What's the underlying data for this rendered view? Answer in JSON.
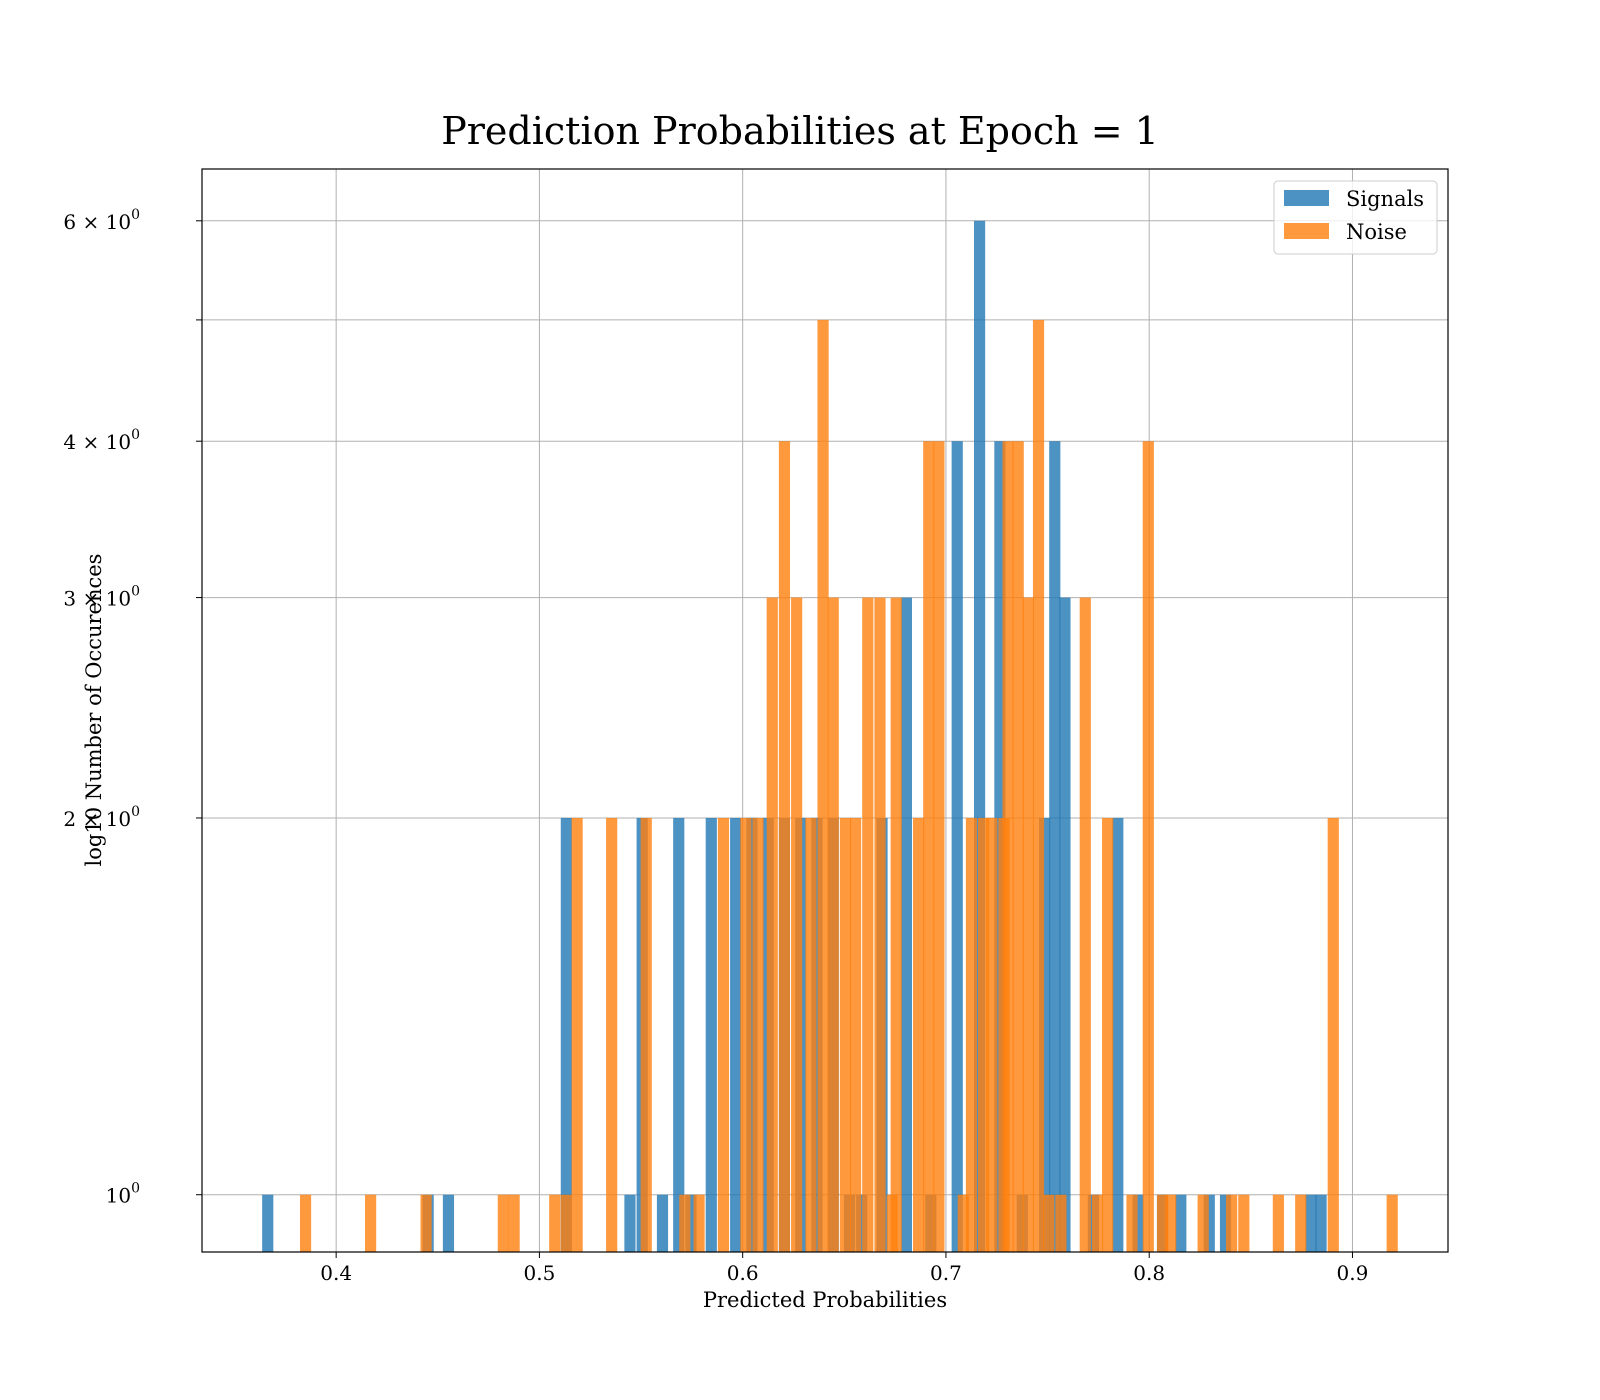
{
  "chart_data": {
    "type": "bar",
    "title": "Prediction Probabilities at Epoch = 1",
    "xlabel": "Predicted Probabilities",
    "ylabel": "log10 Number of Occurences",
    "xlim": [
      0.334,
      0.947
    ],
    "ylim": [
      0.9,
      6.6
    ],
    "yscale": "log",
    "grid": true,
    "legend_position": "top-right",
    "bin_width": 0.0055,
    "x_ticks": [
      {
        "value": 0.4,
        "label": "0.4"
      },
      {
        "value": 0.5,
        "label": "0.5"
      },
      {
        "value": 0.6,
        "label": "0.6"
      },
      {
        "value": 0.7,
        "label": "0.7"
      },
      {
        "value": 0.8,
        "label": "0.8"
      },
      {
        "value": 0.9,
        "label": "0.9"
      }
    ],
    "y_ticks": [
      {
        "value": 1,
        "base": "10",
        "exp": "0"
      },
      {
        "value": 2,
        "base": "2 × 10",
        "exp": "0"
      },
      {
        "value": 3,
        "base": "3 × 10",
        "exp": "0"
      },
      {
        "value": 4,
        "base": "4 × 10",
        "exp": "0"
      },
      {
        "value": 5,
        "base": "",
        "exp": ""
      },
      {
        "value": 6,
        "base": "6 × 10",
        "exp": "0"
      }
    ],
    "series": [
      {
        "name": "Signals",
        "color": "#1f77b4",
        "opacity": 0.8,
        "bins": [
          [
            0.3636,
            1
          ],
          [
            0.4425,
            1
          ],
          [
            0.4525,
            1
          ],
          [
            0.5105,
            2
          ],
          [
            0.5418,
            1
          ],
          [
            0.5478,
            2
          ],
          [
            0.5578,
            1
          ],
          [
            0.5658,
            2
          ],
          [
            0.5718,
            1
          ],
          [
            0.5818,
            2
          ],
          [
            0.5938,
            2
          ],
          [
            0.6018,
            2
          ],
          [
            0.6098,
            2
          ],
          [
            0.6178,
            2
          ],
          [
            0.6258,
            2
          ],
          [
            0.6338,
            2
          ],
          [
            0.6418,
            2
          ],
          [
            0.6498,
            1
          ],
          [
            0.6558,
            1
          ],
          [
            0.6658,
            2
          ],
          [
            0.6778,
            3
          ],
          [
            0.6898,
            1
          ],
          [
            0.7028,
            4
          ],
          [
            0.7138,
            6
          ],
          [
            0.7238,
            4
          ],
          [
            0.7348,
            1
          ],
          [
            0.7458,
            2
          ],
          [
            0.7508,
            4
          ],
          [
            0.7558,
            3
          ],
          [
            0.7698,
            1
          ],
          [
            0.7818,
            2
          ],
          [
            0.7918,
            1
          ],
          [
            0.8038,
            1
          ],
          [
            0.8128,
            1
          ],
          [
            0.8268,
            1
          ],
          [
            0.8348,
            1
          ],
          [
            0.8768,
            1
          ],
          [
            0.8818,
            1
          ]
        ]
      },
      {
        "name": "Noise",
        "color": "#ff7f0e",
        "opacity": 0.8,
        "bins": [
          [
            0.3822,
            1
          ],
          [
            0.4142,
            1
          ],
          [
            0.4415,
            1
          ],
          [
            0.4795,
            1
          ],
          [
            0.4848,
            1
          ],
          [
            0.5048,
            1
          ],
          [
            0.5105,
            1
          ],
          [
            0.5158,
            2
          ],
          [
            0.5328,
            2
          ],
          [
            0.5498,
            2
          ],
          [
            0.5688,
            1
          ],
          [
            0.5758,
            1
          ],
          [
            0.5878,
            2
          ],
          [
            0.5988,
            2
          ],
          [
            0.6048,
            2
          ],
          [
            0.6118,
            3
          ],
          [
            0.6178,
            4
          ],
          [
            0.6238,
            3
          ],
          [
            0.6308,
            2
          ],
          [
            0.6368,
            5
          ],
          [
            0.6418,
            3
          ],
          [
            0.6478,
            2
          ],
          [
            0.6528,
            2
          ],
          [
            0.6588,
            3
          ],
          [
            0.6648,
            3
          ],
          [
            0.6708,
            1
          ],
          [
            0.6728,
            3
          ],
          [
            0.6838,
            2
          ],
          [
            0.6888,
            4
          ],
          [
            0.6938,
            4
          ],
          [
            0.7058,
            1
          ],
          [
            0.7098,
            2
          ],
          [
            0.7158,
            2
          ],
          [
            0.7198,
            2
          ],
          [
            0.7258,
            2
          ],
          [
            0.7278,
            4
          ],
          [
            0.7328,
            4
          ],
          [
            0.7378,
            3
          ],
          [
            0.7428,
            5
          ],
          [
            0.7478,
            1
          ],
          [
            0.7538,
            1
          ],
          [
            0.7658,
            3
          ],
          [
            0.7718,
            1
          ],
          [
            0.7768,
            2
          ],
          [
            0.7888,
            1
          ],
          [
            0.7968,
            4
          ],
          [
            0.8038,
            1
          ],
          [
            0.8078,
            1
          ],
          [
            0.8238,
            1
          ],
          [
            0.8378,
            1
          ],
          [
            0.8438,
            1
          ],
          [
            0.8608,
            1
          ],
          [
            0.8718,
            1
          ],
          [
            0.8878,
            2
          ],
          [
            0.9168,
            1
          ]
        ]
      }
    ]
  }
}
